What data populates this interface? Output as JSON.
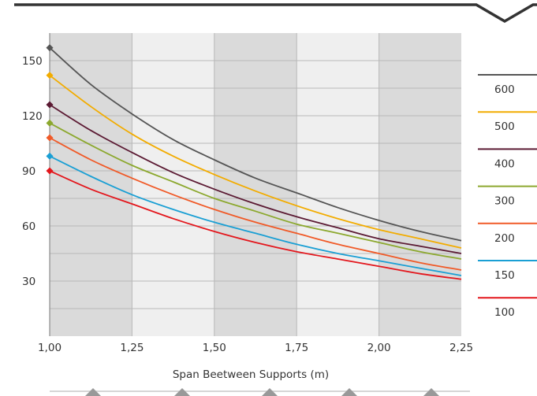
{
  "chart_data": {
    "type": "line",
    "xlabel": "Span Beetween Supports (m)",
    "ylabel": "",
    "xlim": [
      1.0,
      2.25
    ],
    "ylim": [
      0,
      165
    ],
    "x_ticks": [
      "1,00",
      "1,25",
      "1,50",
      "1,75",
      "2,00",
      "2,25"
    ],
    "y_ticks": [
      "30",
      "60",
      "90",
      "120",
      "150"
    ],
    "grid": true,
    "legend_position": "right",
    "x": [
      1.0,
      1.125,
      1.25,
      1.375,
      1.5,
      1.625,
      1.75,
      1.875,
      2.0,
      2.125,
      2.25
    ],
    "series": [
      {
        "name": "600",
        "color": "#555555",
        "values": [
          157,
          137,
          121,
          107,
          96,
          86,
          78,
          70,
          63,
          57,
          52
        ]
      },
      {
        "name": "500",
        "color": "#f2ac00",
        "values": [
          142,
          125,
          110,
          98,
          88,
          79,
          71,
          64,
          58,
          53,
          48
        ]
      },
      {
        "name": "400",
        "color": "#5b1a33",
        "values": [
          126,
          112,
          100,
          89,
          80,
          72,
          65,
          59,
          53,
          49,
          45
        ]
      },
      {
        "name": "300",
        "color": "#8ca82e",
        "values": [
          116,
          104,
          93,
          84,
          75,
          68,
          61,
          56,
          51,
          46,
          42
        ]
      },
      {
        "name": "200",
        "color": "#f05a28",
        "values": [
          108,
          96,
          86,
          77,
          69,
          62,
          56,
          50,
          45,
          40,
          36
        ]
      },
      {
        "name": "150",
        "color": "#1a9fd4",
        "values": [
          98,
          87,
          77,
          69,
          62,
          56,
          50,
          45,
          41,
          37,
          33
        ]
      },
      {
        "name": "100",
        "color": "#e3161c",
        "values": [
          90,
          80,
          72,
          64,
          57,
          51,
          46,
          42,
          38,
          34,
          31
        ]
      }
    ]
  },
  "style": {
    "band_dark": "#dadada",
    "band_light": "#efefef",
    "grid_color": "#b8b8b8",
    "frame_color": "#333333",
    "triangle_color": "#999999"
  }
}
